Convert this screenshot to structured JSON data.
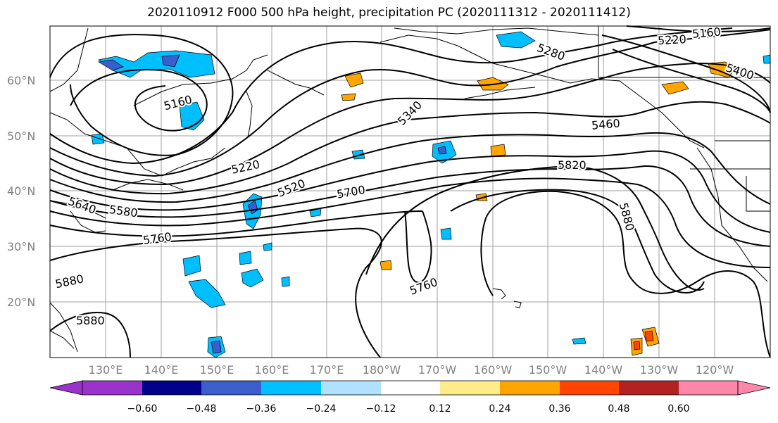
{
  "title": "2020110912 F000 500 hPa height, precipitation PC (2020111312 - 2020111412)",
  "lat_labels": [
    "60°N",
    "50°N",
    "40°N",
    "30°N",
    "20°N"
  ],
  "lon_labels": [
    "130°E",
    "140°E",
    "150°E",
    "160°E",
    "170°E",
    "180°W",
    "170°W",
    "160°W",
    "150°W",
    "140°W",
    "130°W",
    "120°W"
  ],
  "contour_labels": [
    "5160",
    "5160",
    "5220",
    "5220",
    "5280",
    "5340",
    "5400",
    "5460",
    "5520",
    "5580",
    "5640",
    "5700",
    "5760",
    "5760",
    "5820",
    "5880",
    "5880",
    "5880"
  ],
  "colorbar": {
    "colors": [
      "#9933cc",
      "#00008b",
      "#3a5fcd",
      "#00bfff",
      "#b0e2ff",
      "#ffffff",
      "#ffec8b",
      "#ffa500",
      "#ff4500",
      "#b22222",
      "#ff88aa"
    ],
    "tick_labels": [
      "−0.60",
      "−0.48",
      "−0.36",
      "−0.24",
      "−0.12",
      "0.12",
      "0.24",
      "0.36",
      "0.48",
      "0.60"
    ]
  },
  "colors": {
    "grid": "#a0a0a0",
    "contour": "#000000",
    "coast": "#000000"
  }
}
